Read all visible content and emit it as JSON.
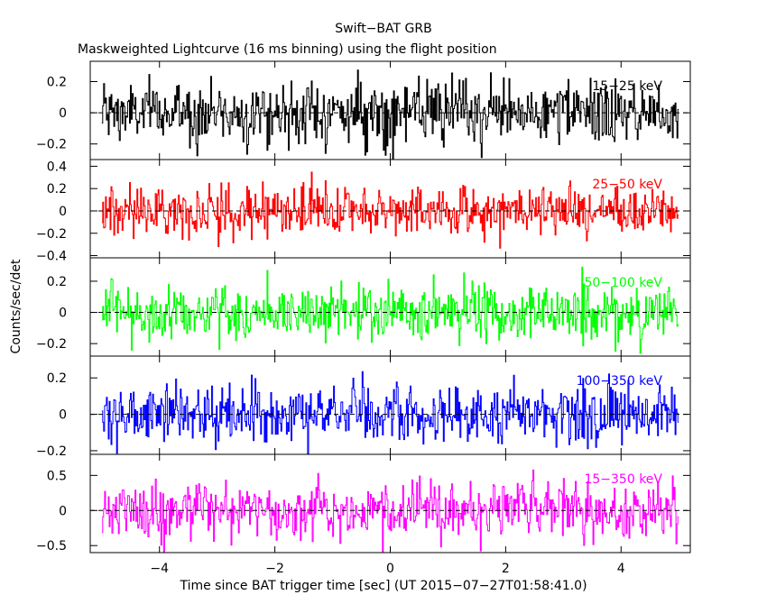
{
  "chart_data": {
    "type": "line",
    "title": "Swift−BAT GRB",
    "subtitle": "Maskweighted Lightcurve (16 ms binning) using the flight position",
    "xlabel": "Time since BAT trigger time [sec] (UT 2015−07−27T01:58:41.0)",
    "ylabel": "Counts/sec/det",
    "xlim": [
      -5.2,
      5.2
    ],
    "x_ticks": [
      -4,
      -2,
      0,
      2,
      4
    ],
    "x_tick_labels": [
      "−4",
      "−2",
      "0",
      "2",
      "4"
    ],
    "binning_s": 0.016,
    "data_range_s": [
      -5.0,
      5.0
    ],
    "panels": [
      {
        "band": "15−25 keV",
        "color": "#000000",
        "ylim": [
          -0.3,
          0.33
        ],
        "y_ticks": [
          -0.2,
          0,
          0.2
        ],
        "y_tick_labels": [
          "−0.2",
          "0",
          "0.2"
        ],
        "noise_amplitude": 0.1
      },
      {
        "band": "25−50 keV",
        "color": "#ff0000",
        "ylim": [
          -0.42,
          0.46
        ],
        "y_ticks": [
          -0.4,
          -0.2,
          0,
          0.2,
          0.4
        ],
        "y_tick_labels": [
          "−0.4",
          "−0.2",
          "0",
          "0.2",
          "0.4"
        ],
        "noise_amplitude": 0.11
      },
      {
        "band": "50−100 keV",
        "color": "#00ff00",
        "ylim": [
          -0.28,
          0.35
        ],
        "y_ticks": [
          -0.2,
          0,
          0.2
        ],
        "y_tick_labels": [
          "−0.2",
          "0",
          "0.2"
        ],
        "noise_amplitude": 0.09
      },
      {
        "band": "100−350 keV",
        "color": "#0000ff",
        "ylim": [
          -0.22,
          0.32
        ],
        "y_ticks": [
          -0.2,
          0,
          0.2
        ],
        "y_tick_labels": [
          "−0.2",
          "0",
          "0.2"
        ],
        "noise_amplitude": 0.08
      },
      {
        "band": "15−350 keV",
        "color": "#ff00ff",
        "ylim": [
          -0.6,
          0.8
        ],
        "y_ticks": [
          -0.5,
          0,
          0.5
        ],
        "y_tick_labels": [
          "−0.5",
          "0",
          "0.5"
        ],
        "noise_amplitude": 0.2
      }
    ]
  }
}
